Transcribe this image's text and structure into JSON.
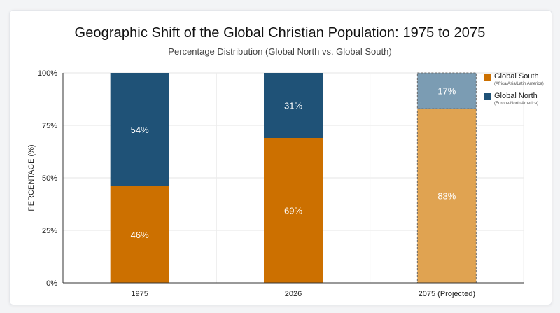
{
  "chart_data": {
    "type": "bar",
    "stacked": true,
    "title": "Geographic Shift of the Global Christian Population: 1975 to 2075",
    "subtitle": "Percentage Distribution (Global North vs. Global South)",
    "xlabel": "",
    "ylabel": "PERCENTAGE (%)",
    "ylim": [
      0,
      100
    ],
    "yticks": [
      "0%",
      "25%",
      "50%",
      "75%",
      "100%"
    ],
    "categories": [
      "1975",
      "2026",
      "2075 (Projected)"
    ],
    "projected": [
      false,
      false,
      true
    ],
    "series": [
      {
        "name": "Global South",
        "note": "(Africa/Asia/Latin America)",
        "color": "#cc7000",
        "projected_color": "#e0a351",
        "values": [
          46,
          69,
          83
        ],
        "labels": [
          "46%",
          "69%",
          "83%"
        ]
      },
      {
        "name": "Global North",
        "note": "(Europe/North America)",
        "color": "#1f5277",
        "projected_color": "#7b9cb3",
        "values": [
          54,
          31,
          17
        ],
        "labels": [
          "54%",
          "31%",
          "17%"
        ]
      }
    ],
    "grid": true,
    "legend": "top-right"
  }
}
